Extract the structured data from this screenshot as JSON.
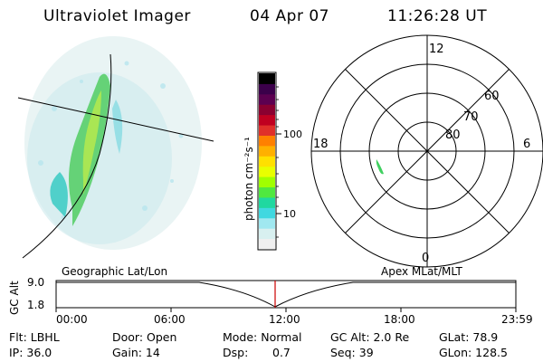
{
  "header": {
    "title": "Ultraviolet Imager",
    "date": "04 Apr 07",
    "time": "11:26:28 UT"
  },
  "colorbar": {
    "label": "photon cm⁻²s⁻¹",
    "tick_100": "100",
    "tick_10": "10",
    "colors": [
      "#000000",
      "#3b004a",
      "#5c0050",
      "#8a0030",
      "#c00020",
      "#e0302a",
      "#ff8000",
      "#ffb000",
      "#ffe000",
      "#e8ff00",
      "#a0ff00",
      "#50e840",
      "#20d8a0",
      "#40d8e0",
      "#a0e8f0",
      "#d8f0f0",
      "#f0f0f0"
    ]
  },
  "polar": {
    "mlt_top": "12",
    "mlt_left": "18",
    "mlt_right": "6",
    "mlt_bottom": "0",
    "lat_60": "60",
    "lat_70": "70",
    "lat_80": "80"
  },
  "timeline": {
    "left_label": "Geographic Lat/Lon",
    "right_label": "Apex MLat/MLT",
    "y_axis_label": "GC Alt",
    "y_top": "9.0",
    "y_bottom": "1.8",
    "x_ticks": [
      "00:00",
      "06:00",
      "12:00",
      "18:00",
      "23:59"
    ],
    "current_time_color": "#cc0000"
  },
  "info": {
    "flt": "Flt: LBHL",
    "ip": "IP: 36.0",
    "door": "Door: Open",
    "gain": "Gain: 14",
    "mode": "Mode: Normal",
    "dsp_label": "Dsp:",
    "dsp_value": "0.7",
    "gc_alt": "GC Alt: 2.0 Re",
    "seq": "Seq: 39",
    "glat": "GLat:  78.9",
    "glon": "GLon: 128.5"
  }
}
